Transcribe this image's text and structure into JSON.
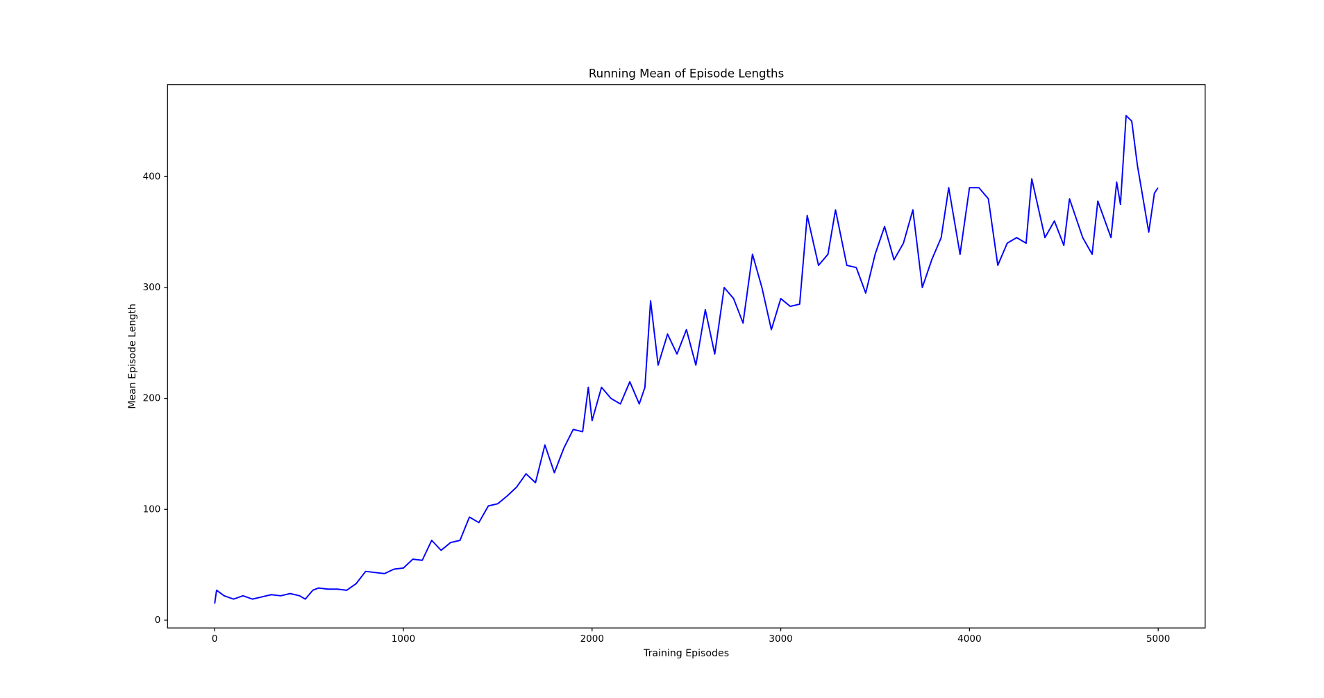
{
  "chart_data": {
    "type": "line",
    "title": "Running Mean of Episode Lengths",
    "x_label": "Training Episodes",
    "y_label": "Mean Episode Length",
    "xlim": [
      -250,
      5249
    ],
    "ylim": [
      -7,
      483
    ],
    "xticks": [
      0,
      1000,
      2000,
      3000,
      4000,
      5000
    ],
    "yticks": [
      0,
      100,
      200,
      300,
      400
    ],
    "grid": false,
    "series": [
      {
        "name": "Running Mean",
        "color": "#0000ff",
        "x": [
          0,
          10,
          50,
          100,
          150,
          200,
          250,
          300,
          350,
          400,
          450,
          480,
          520,
          550,
          600,
          650,
          700,
          750,
          800,
          850,
          900,
          950,
          1000,
          1050,
          1100,
          1150,
          1200,
          1250,
          1300,
          1350,
          1400,
          1450,
          1500,
          1550,
          1600,
          1650,
          1700,
          1750,
          1800,
          1850,
          1900,
          1950,
          1980,
          2000,
          2050,
          2100,
          2150,
          2200,
          2250,
          2280,
          2310,
          2350,
          2400,
          2450,
          2500,
          2550,
          2600,
          2650,
          2700,
          2750,
          2800,
          2850,
          2900,
          2950,
          3000,
          3050,
          3100,
          3140,
          3200,
          3250,
          3290,
          3350,
          3400,
          3450,
          3500,
          3550,
          3600,
          3650,
          3700,
          3750,
          3800,
          3850,
          3890,
          3950,
          4000,
          4050,
          4100,
          4150,
          4200,
          4250,
          4300,
          4330,
          4400,
          4450,
          4500,
          4530,
          4600,
          4650,
          4680,
          4750,
          4780,
          4800,
          4830,
          4860,
          4890,
          4950,
          4980,
          4999
        ],
        "values": [
          15,
          27,
          22,
          19,
          22,
          19,
          21,
          23,
          22,
          24,
          22,
          19,
          27,
          29,
          28,
          28,
          27,
          33,
          44,
          43,
          42,
          46,
          47,
          55,
          54,
          72,
          63,
          70,
          72,
          93,
          88,
          103,
          105,
          112,
          120,
          132,
          124,
          158,
          133,
          155,
          172,
          170,
          210,
          180,
          210,
          200,
          195,
          215,
          195,
          210,
          288,
          230,
          258,
          240,
          262,
          230,
          280,
          240,
          300,
          290,
          268,
          330,
          300,
          262,
          290,
          283,
          285,
          365,
          320,
          330,
          370,
          320,
          318,
          295,
          330,
          355,
          325,
          340,
          370,
          300,
          325,
          345,
          390,
          330,
          390,
          390,
          380,
          320,
          340,
          345,
          340,
          398,
          345,
          360,
          338,
          380,
          345,
          330,
          378,
          345,
          395,
          375,
          455,
          450,
          410,
          350,
          385,
          390
        ]
      }
    ]
  }
}
